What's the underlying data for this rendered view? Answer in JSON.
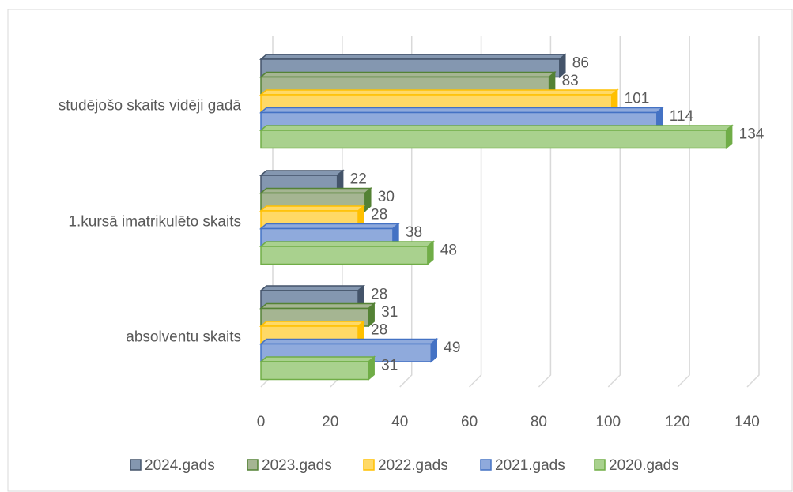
{
  "chart_data": {
    "type": "bar",
    "orientation": "horizontal",
    "3d": true,
    "categories": [
      "studējošo skaits vidēji gadā",
      "1.kursā imatrikulēto skaits",
      "absolventu skaits"
    ],
    "series": [
      {
        "name": "2024.gads",
        "color": "#8497b0",
        "border": "#44546a",
        "values": [
          86,
          22,
          28
        ]
      },
      {
        "name": "2023.gads",
        "color": "#a5b592",
        "border": "#548235",
        "values": [
          83,
          30,
          31
        ]
      },
      {
        "name": "2022.gads",
        "color": "#ffd966",
        "border": "#ffc000",
        "values": [
          101,
          28,
          28
        ]
      },
      {
        "name": "2021.gads",
        "color": "#8faadc",
        "border": "#4472c4",
        "values": [
          114,
          38,
          49
        ]
      },
      {
        "name": "2020.gads",
        "color": "#a9d18e",
        "border": "#70ad47",
        "values": [
          134,
          48,
          31
        ]
      }
    ],
    "xlim": [
      0,
      140
    ],
    "xticks": [
      0,
      20,
      40,
      60,
      80,
      100,
      120,
      140
    ],
    "grid": true,
    "legend": "bottom"
  }
}
